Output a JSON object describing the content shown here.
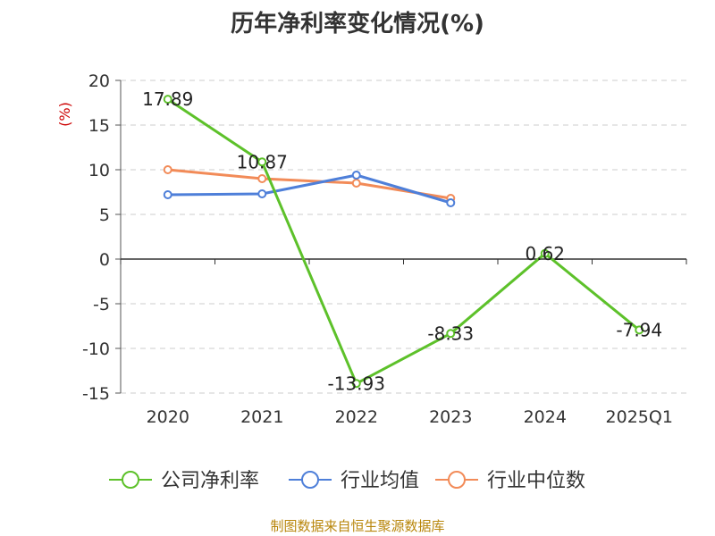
{
  "chart_data": {
    "type": "line",
    "title": "历年净利率变化情况(%)",
    "ylabel": "(%)",
    "categories": [
      "2020",
      "2021",
      "2022",
      "2023",
      "2024",
      "2025Q1"
    ],
    "ylim": [
      -15,
      20
    ],
    "yticks": [
      20,
      15,
      10,
      5,
      0,
      -5,
      -10,
      -15
    ],
    "grid": true,
    "legend_position": "bottom",
    "series": [
      {
        "name": "公司净利率",
        "color": "#5dc12a",
        "values": [
          17.89,
          10.87,
          -13.93,
          -8.33,
          0.62,
          -7.94
        ],
        "labels": [
          "17.89",
          "10.87",
          "-13.93",
          "-8.33",
          "0.62",
          "-7.94"
        ]
      },
      {
        "name": "行业均值",
        "color": "#4e7fd9",
        "values": [
          7.2,
          7.3,
          9.4,
          6.3,
          null,
          null
        ]
      },
      {
        "name": "行业中位数",
        "color": "#f28b58",
        "values": [
          10.0,
          9.0,
          8.5,
          6.8,
          null,
          null
        ]
      }
    ]
  },
  "footer": {
    "source": "制图数据来自恒生聚源数据库"
  }
}
